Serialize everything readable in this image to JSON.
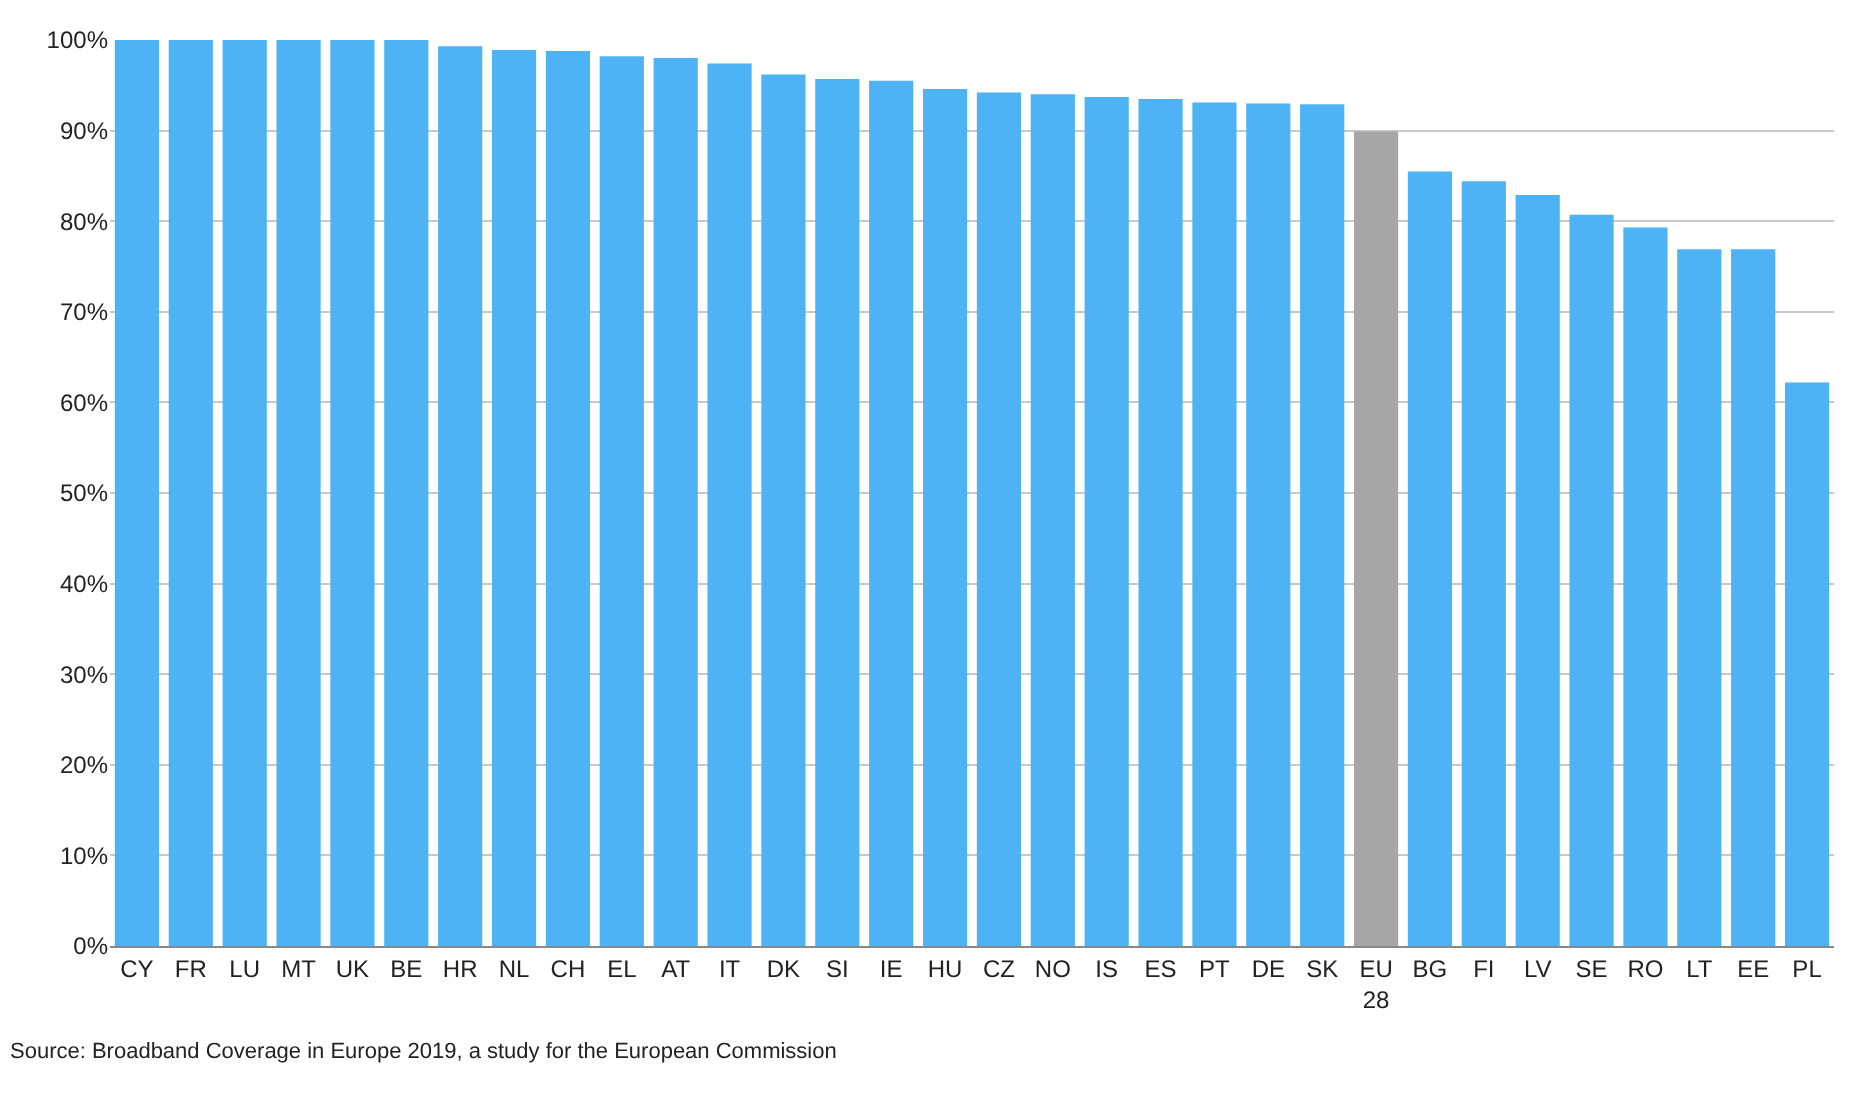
{
  "chart_data": {
    "type": "bar",
    "categories": [
      "CY",
      "FR",
      "LU",
      "MT",
      "UK",
      "BE",
      "HR",
      "NL",
      "CH",
      "EL",
      "AT",
      "IT",
      "DK",
      "SI",
      "IE",
      "HU",
      "CZ",
      "NO",
      "IS",
      "ES",
      "PT",
      "DE",
      "SK",
      "EU\n28",
      "BG",
      "FI",
      "LV",
      "SE",
      "RO",
      "LT",
      "EE",
      "PL"
    ],
    "values": [
      100,
      100,
      100,
      100,
      100,
      100,
      99.3,
      98.9,
      98.8,
      98.2,
      98.0,
      97.4,
      96.2,
      95.7,
      95.5,
      94.6,
      94.2,
      94.0,
      93.7,
      93.5,
      93.1,
      93.0,
      92.9,
      89.9,
      85.5,
      84.4,
      82.9,
      80.7,
      79.3,
      76.9,
      76.9,
      62.2
    ],
    "colors": [
      "#4db3f5",
      "#4db3f5",
      "#4db3f5",
      "#4db3f5",
      "#4db3f5",
      "#4db3f5",
      "#4db3f5",
      "#4db3f5",
      "#4db3f5",
      "#4db3f5",
      "#4db3f5",
      "#4db3f5",
      "#4db3f5",
      "#4db3f5",
      "#4db3f5",
      "#4db3f5",
      "#4db3f5",
      "#4db3f5",
      "#4db3f5",
      "#4db3f5",
      "#4db3f5",
      "#4db3f5",
      "#4db3f5",
      "#a6a6a6",
      "#4db3f5",
      "#4db3f5",
      "#4db3f5",
      "#4db3f5",
      "#4db3f5",
      "#4db3f5",
      "#4db3f5",
      "#4db3f5"
    ],
    "ylim": [
      0,
      100
    ],
    "yticks": [
      {
        "value": 0,
        "label": "0%"
      },
      {
        "value": 10,
        "label": "10%"
      },
      {
        "value": 20,
        "label": "20%"
      },
      {
        "value": 30,
        "label": "30%"
      },
      {
        "value": 40,
        "label": "40%"
      },
      {
        "value": 50,
        "label": "50%"
      },
      {
        "value": 60,
        "label": "60%"
      },
      {
        "value": 70,
        "label": "70%"
      },
      {
        "value": 80,
        "label": "80%"
      },
      {
        "value": 90,
        "label": "90%"
      },
      {
        "value": 100,
        "label": "100%"
      }
    ],
    "grid": "y",
    "legend": false,
    "annotations": [
      "Source: Broadband Coverage in Europe 2019, a study for the European Commission"
    ]
  }
}
